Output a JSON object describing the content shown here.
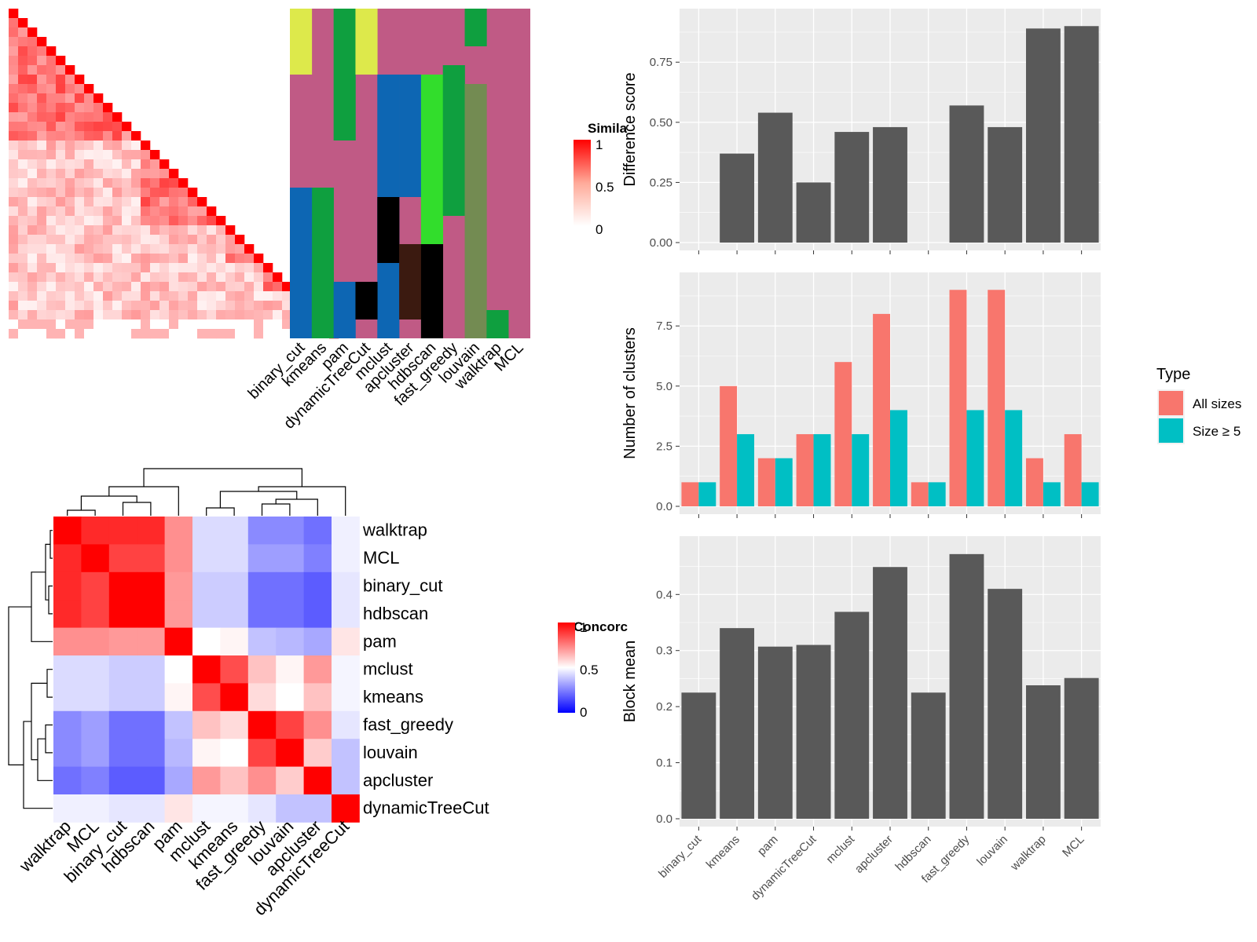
{
  "chart_data": [
    {
      "type": "heatmap",
      "variant": "cell-similarity-heatmap-with-cluster-annotation",
      "title": "",
      "description_of_rows": "cells ordered by hierarchical clustering; lower-triangle similarity matrix shown as colored blocks",
      "legend": {
        "title": "Similarity",
        "title_visible": "Simila",
        "ticks": [
          "1",
          "0.5",
          "0"
        ],
        "low_color": "#ffffff",
        "high_color": "#ff0000"
      },
      "annotation_columns": [
        "binary_cut",
        "kmeans",
        "pam",
        "dynamicTreeCut",
        "mclust",
        "apcluster",
        "hdbscan",
        "fast_greedy",
        "louvain",
        "walktrap",
        "MCL"
      ],
      "annotation_palette": [
        "#c05a85",
        "#dde94b",
        "#0f9f3f",
        "#0d66b3",
        "#000000",
        "#3b1a10",
        "#738b52",
        "#32dd2c"
      ]
    },
    {
      "type": "heatmap",
      "variant": "method-concordance",
      "title": "",
      "legend": {
        "title": "Concordance",
        "title_visible": "Concorc",
        "ticks": [
          "1",
          "0.5",
          "0"
        ],
        "low_color": "#0000ff",
        "mid_color": "#ffffff",
        "high_color": "#ff0000"
      },
      "rows": [
        "walktrap",
        "MCL",
        "binary_cut",
        "hdbscan",
        "pam",
        "mclust",
        "kmeans",
        "fast_greedy",
        "louvain",
        "apcluster",
        "dynamicTreeCut"
      ],
      "columns": [
        "walktrap",
        "MCL",
        "binary_cut",
        "hdbscan",
        "pam",
        "mclust",
        "kmeans",
        "fast_greedy",
        "louvain",
        "apcluster",
        "dynamicTreeCut"
      ],
      "values": [
        [
          1.0,
          0.92,
          0.92,
          0.92,
          0.72,
          0.43,
          0.43,
          0.27,
          0.27,
          0.22,
          0.47
        ],
        [
          0.92,
          1.0,
          0.87,
          0.87,
          0.72,
          0.43,
          0.43,
          0.31,
          0.31,
          0.25,
          0.47
        ],
        [
          0.92,
          0.87,
          1.0,
          1.0,
          0.7,
          0.4,
          0.4,
          0.22,
          0.22,
          0.18,
          0.45
        ],
        [
          0.92,
          0.87,
          1.0,
          1.0,
          0.7,
          0.4,
          0.4,
          0.22,
          0.22,
          0.18,
          0.45
        ],
        [
          0.72,
          0.72,
          0.7,
          0.7,
          1.0,
          0.5,
          0.52,
          0.38,
          0.36,
          0.33,
          0.55
        ],
        [
          0.43,
          0.43,
          0.4,
          0.4,
          0.5,
          1.0,
          0.85,
          0.62,
          0.52,
          0.7,
          0.48
        ],
        [
          0.43,
          0.43,
          0.4,
          0.4,
          0.52,
          0.85,
          1.0,
          0.57,
          0.5,
          0.62,
          0.48
        ],
        [
          0.27,
          0.31,
          0.22,
          0.22,
          0.38,
          0.62,
          0.57,
          1.0,
          0.87,
          0.72,
          0.45
        ],
        [
          0.27,
          0.31,
          0.22,
          0.22,
          0.36,
          0.52,
          0.5,
          0.87,
          1.0,
          0.6,
          0.38
        ],
        [
          0.22,
          0.25,
          0.18,
          0.18,
          0.33,
          0.7,
          0.62,
          0.72,
          0.6,
          1.0,
          0.38
        ],
        [
          0.47,
          0.47,
          0.45,
          0.45,
          0.55,
          0.48,
          0.48,
          0.45,
          0.38,
          0.38,
          1.0
        ]
      ]
    },
    {
      "type": "bar",
      "categories": [
        "binary_cut",
        "kmeans",
        "pam",
        "dynamicTreeCut",
        "mclust",
        "apcluster",
        "hdbscan",
        "fast_greedy",
        "louvain",
        "walktrap",
        "MCL"
      ],
      "series": [
        {
          "values": [
            0.0,
            0.37,
            0.54,
            0.25,
            0.46,
            0.48,
            0.0,
            0.57,
            0.48,
            0.89,
            0.9
          ]
        }
      ],
      "xlabel": "",
      "ylabel": "Difference score",
      "ylim": [
        0,
        0.94
      ],
      "yticks": [
        "0.00",
        "0.25",
        "0.50",
        "0.75"
      ],
      "bar_color": "#595959",
      "grid": true
    },
    {
      "type": "bar",
      "categories": [
        "binary_cut",
        "kmeans",
        "pam",
        "dynamicTreeCut",
        "mclust",
        "apcluster",
        "hdbscan",
        "fast_greedy",
        "louvain",
        "walktrap",
        "MCL"
      ],
      "series": [
        {
          "name": "All sizes",
          "color": "#f8766d",
          "values": [
            1,
            5,
            2,
            3,
            6,
            8,
            1,
            9,
            9,
            2,
            3
          ]
        },
        {
          "name": "Size ≥ 5",
          "color": "#00bfc4",
          "values": [
            1,
            3,
            2,
            3,
            3,
            4,
            1,
            4,
            4,
            1,
            1
          ]
        }
      ],
      "xlabel": "",
      "ylabel": "Number of clusters",
      "ylim": [
        0,
        9.4
      ],
      "yticks": [
        "0.0",
        "2.5",
        "5.0",
        "7.5"
      ],
      "legend": {
        "title": "Type",
        "position": "right"
      },
      "grid": true
    },
    {
      "type": "bar",
      "categories": [
        "binary_cut",
        "kmeans",
        "pam",
        "dynamicTreeCut",
        "mclust",
        "apcluster",
        "hdbscan",
        "fast_greedy",
        "louvain",
        "walktrap",
        "MCL"
      ],
      "series": [
        {
          "values": [
            0.225,
            0.34,
            0.307,
            0.31,
            0.369,
            0.449,
            0.225,
            0.472,
            0.41,
            0.238,
            0.251
          ]
        }
      ],
      "xlabel": "",
      "ylabel": "Block mean",
      "ylim": [
        0,
        0.49
      ],
      "yticks": [
        "0.0",
        "0.1",
        "0.2",
        "0.3",
        "0.4"
      ],
      "bar_color": "#595959",
      "grid": true
    }
  ]
}
